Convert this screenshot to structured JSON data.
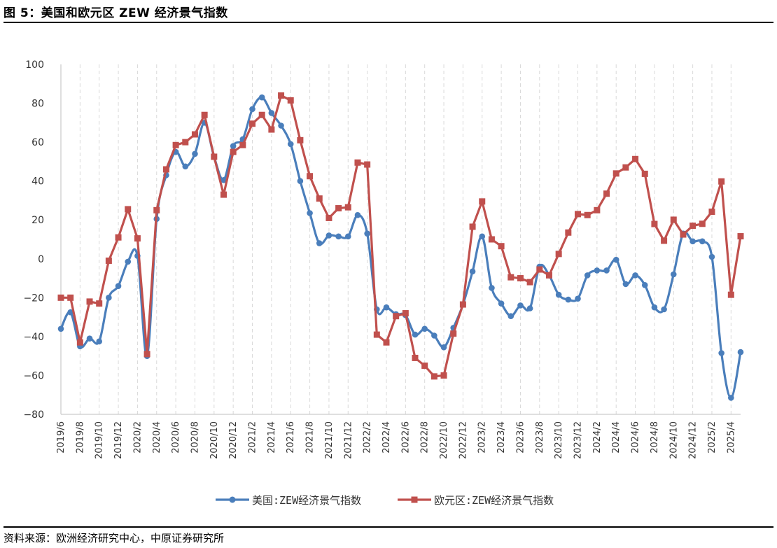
{
  "figure": {
    "title": "图 5：美国和欧元区 ZEW 经济景气指数",
    "source": "资料来源：欧洲经济研究中心，中原证券研究所"
  },
  "chart_data": {
    "type": "line",
    "ylim": [
      -80,
      100
    ],
    "yticks": [
      -80,
      -60,
      -40,
      -20,
      0,
      20,
      40,
      60,
      80,
      100
    ],
    "ytick_labels": [
      "−80",
      "−60",
      "−40",
      "−20",
      "0",
      "20",
      "40",
      "60",
      "80",
      "100"
    ],
    "grid": {
      "x": true,
      "x_style": "dashed",
      "y": false
    },
    "legend_position": "bottom-center",
    "x": [
      "2019/6",
      "2019/7",
      "2019/8",
      "2019/9",
      "2019/10",
      "2019/11",
      "2019/12",
      "2020/1",
      "2020/2",
      "2020/3",
      "2020/4",
      "2020/5",
      "2020/6",
      "2020/7",
      "2020/8",
      "2020/9",
      "2020/10",
      "2020/11",
      "2020/12",
      "2021/1",
      "2021/2",
      "2021/3",
      "2021/4",
      "2021/5",
      "2021/6",
      "2021/7",
      "2021/8",
      "2021/9",
      "2021/10",
      "2021/11",
      "2021/12",
      "2022/1",
      "2022/2",
      "2022/3",
      "2022/4",
      "2022/5",
      "2022/6",
      "2022/7",
      "2022/8",
      "2022/9",
      "2022/10",
      "2022/11",
      "2022/12",
      "2023/1",
      "2023/2",
      "2023/3",
      "2023/4",
      "2023/5",
      "2023/6",
      "2023/7",
      "2023/8",
      "2023/9",
      "2023/10",
      "2023/11",
      "2023/12",
      "2024/1",
      "2024/2",
      "2024/3",
      "2024/4",
      "2024/5",
      "2024/6",
      "2024/7",
      "2024/8",
      "2024/9",
      "2024/10",
      "2024/11",
      "2024/12",
      "2025/1",
      "2025/2",
      "2025/3",
      "2025/4",
      "2025/5"
    ],
    "xtick_labels": [
      "2019/6",
      "2019/8",
      "2019/10",
      "2019/12",
      "2020/2",
      "2020/4",
      "2020/6",
      "2020/8",
      "2020/10",
      "2020/12",
      "2021/2",
      "2021/4",
      "2021/6",
      "2021/8",
      "2021/10",
      "2021/12",
      "2022/2",
      "2022/4",
      "2022/6",
      "2022/8",
      "2022/10",
      "2022/12",
      "2023/2",
      "2023/4",
      "2023/6",
      "2023/8",
      "2023/10",
      "2023/12",
      "2024/2",
      "2024/4",
      "2024/6",
      "2024/8",
      "2024/10",
      "2024/12",
      "2025/2",
      "2025/4"
    ],
    "series": [
      {
        "name": "美国:ZEW经济景气指数",
        "color": "#4a7ebb",
        "marker": "circle",
        "smooth": true,
        "values": [
          -36,
          -27.5,
          -45,
          -41,
          -42.5,
          -20,
          -14,
          -1.5,
          1.5,
          -50,
          20.5,
          43,
          55,
          47.5,
          54,
          70,
          52.5,
          40.5,
          58,
          61.5,
          77,
          83,
          75,
          68.5,
          59,
          40,
          23.5,
          8,
          12,
          11.5,
          11.5,
          22.5,
          13,
          -26,
          -25,
          -28.5,
          -29,
          -39,
          -36,
          -39.5,
          -45.5,
          -35.5,
          -23.5,
          -6.5,
          11.5,
          -15,
          -23,
          -29.5,
          -24,
          -25.5,
          -4,
          -8.5,
          -18.5,
          -21,
          -20.5,
          -8.5,
          -6,
          -6,
          -0.5,
          -13,
          -8.5,
          -13.5,
          -25,
          -26,
          -8,
          13,
          9,
          9,
          1,
          -48.5,
          -71.5,
          -48
        ]
      },
      {
        "name": "欧元区:ZEW经济景气指数",
        "color": "#c0504d",
        "marker": "square",
        "smooth": false,
        "values": [
          -20,
          -20,
          -43,
          -22,
          -23,
          -1,
          11,
          25.5,
          10.5,
          -49,
          25,
          46,
          58.5,
          60,
          64,
          74,
          52.5,
          33,
          55,
          58.5,
          69.5,
          74,
          66.5,
          84,
          81.5,
          61,
          42.5,
          31,
          21,
          26,
          26.5,
          49.5,
          48.5,
          -39,
          -43,
          -29.5,
          -28,
          -51,
          -55,
          -60.5,
          -60,
          -38.5,
          -23.5,
          16.5,
          29.5,
          10,
          6.5,
          -9.5,
          -10,
          -12,
          -5.5,
          -8.5,
          2.5,
          13.5,
          23,
          22.5,
          25,
          33.5,
          43.9,
          47,
          51.3,
          43.7,
          17.9,
          9.3,
          20.1,
          12.5,
          17,
          18,
          24.2,
          39.8,
          -18.5,
          11.6
        ]
      }
    ]
  }
}
